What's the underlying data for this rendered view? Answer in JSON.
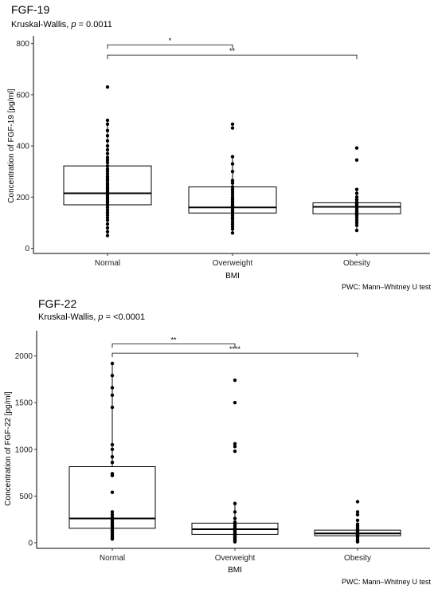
{
  "chart_data": [
    {
      "type": "box",
      "title": "FGF-19",
      "subtitle_prefix": "Kruskal-Wallis, ",
      "subtitle_p": "p",
      "subtitle_value": " = 0.0011",
      "xlabel": "BMI",
      "ylabel": "Concentration of FGF-19 [pg/ml]",
      "ylim": [
        -20,
        830
      ],
      "yticks": [
        0,
        200,
        400,
        600,
        800
      ],
      "categories": [
        "Normal",
        "Overweight",
        "Obesity"
      ],
      "boxes": [
        {
          "q1": 170,
          "median": 215,
          "q3": 322,
          "whisker_low": 50,
          "whisker_high": 500
        },
        {
          "q1": 138,
          "median": 160,
          "q3": 240,
          "whisker_low": 60,
          "whisker_high": 358
        },
        {
          "q1": 135,
          "median": 162,
          "q3": 178,
          "whisker_low": 70,
          "whisker_high": 230
        }
      ],
      "points": [
        [
          630,
          500,
          485,
          460,
          440,
          420,
          400,
          385,
          370,
          355,
          345,
          335,
          322,
          310,
          300,
          290,
          280,
          272,
          265,
          255,
          248,
          240,
          235,
          228,
          220,
          215,
          208,
          200,
          192,
          185,
          178,
          170,
          160,
          150,
          140,
          130,
          120,
          110,
          95,
          80,
          65,
          50
        ],
        [
          485,
          470,
          358,
          330,
          300,
          265,
          255,
          240,
          230,
          220,
          210,
          200,
          192,
          185,
          178,
          170,
          165,
          160,
          152,
          145,
          138,
          130,
          122,
          115,
          105,
          95,
          85,
          75,
          60
        ],
        [
          392,
          345,
          230,
          215,
          200,
          190,
          180,
          175,
          170,
          165,
          162,
          158,
          150,
          145,
          140,
          135,
          128,
          120,
          110,
          100,
          90,
          70
        ]
      ],
      "comparisons": [
        {
          "from": "Normal",
          "to": "Overweight",
          "y": 795,
          "label": "*"
        },
        {
          "from": "Normal",
          "to": "Obesity",
          "y": 755,
          "label": "**"
        }
      ],
      "caption": "PWC: Mann–Whitney U test"
    },
    {
      "type": "box",
      "title": "FGF-22",
      "subtitle_prefix": "Kruskal-Wallis, ",
      "subtitle_p": "p",
      "subtitle_value": " = <0.0001",
      "xlabel": "BMI",
      "ylabel": "Concentration of FGF-22 [pg/ml]",
      "ylim": [
        -60,
        2270
      ],
      "yticks": [
        0,
        500,
        1000,
        1500,
        2000
      ],
      "categories": [
        "Normal",
        "Overweight",
        "Obesity"
      ],
      "boxes": [
        {
          "q1": 155,
          "median": 260,
          "q3": 815,
          "whisker_low": 40,
          "whisker_high": 1920
        },
        {
          "q1": 90,
          "median": 145,
          "q3": 210,
          "whisker_low": 10,
          "whisker_high": 410
        },
        {
          "q1": 75,
          "median": 100,
          "q3": 135,
          "whisker_low": 10,
          "whisker_high": 200
        }
      ],
      "points": [
        [
          1920,
          1790,
          1660,
          1580,
          1450,
          1050,
          1000,
          920,
          860,
          740,
          720,
          540,
          330,
          300,
          270,
          250,
          230,
          210,
          190,
          170,
          150,
          130,
          110,
          90,
          70,
          50,
          40
        ],
        [
          1740,
          1500,
          1060,
          1030,
          980,
          420,
          330,
          260,
          220,
          200,
          180,
          160,
          150,
          140,
          130,
          120,
          110,
          100,
          90,
          80,
          70,
          60,
          50,
          40,
          30,
          20,
          10
        ],
        [
          440,
          330,
          300,
          240,
          200,
          180,
          160,
          140,
          130,
          120,
          110,
          100,
          95,
          90,
          85,
          80,
          70,
          60,
          40,
          20,
          10
        ]
      ],
      "comparisons": [
        {
          "from": "Normal",
          "to": "Overweight",
          "y": 2130,
          "label": "**"
        },
        {
          "from": "Normal",
          "to": "Obesity",
          "y": 2030,
          "label": "****"
        }
      ],
      "caption": "PWC: Mann–Whitney U test"
    }
  ]
}
